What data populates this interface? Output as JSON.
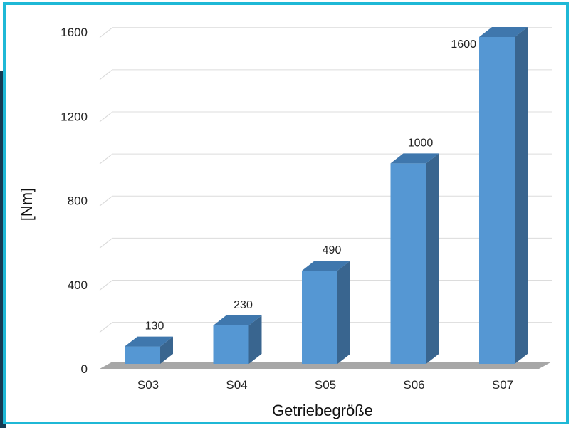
{
  "chart_data": {
    "type": "bar",
    "categories": [
      "S03",
      "S04",
      "S05",
      "S06",
      "S07"
    ],
    "values": [
      130,
      230,
      490,
      1000,
      1600
    ],
    "data_labels": [
      "130",
      "230",
      "490",
      "1000",
      "1600"
    ],
    "xlabel": "Getriebegröße",
    "ylabel": "[Nm]",
    "ylim": [
      0,
      1600
    ],
    "yticks": [
      0,
      400,
      800,
      1200,
      1600
    ],
    "ytick_labels": [
      "0",
      "400",
      "800",
      "1200",
      "1600"
    ],
    "grid": true,
    "style": "3d",
    "colors": {
      "bar_front": "#5597d3",
      "bar_top": "#3f77ad",
      "bar_side": "#39658f",
      "floor": "#a7a7a7",
      "frame": "#1fb8d6"
    }
  }
}
